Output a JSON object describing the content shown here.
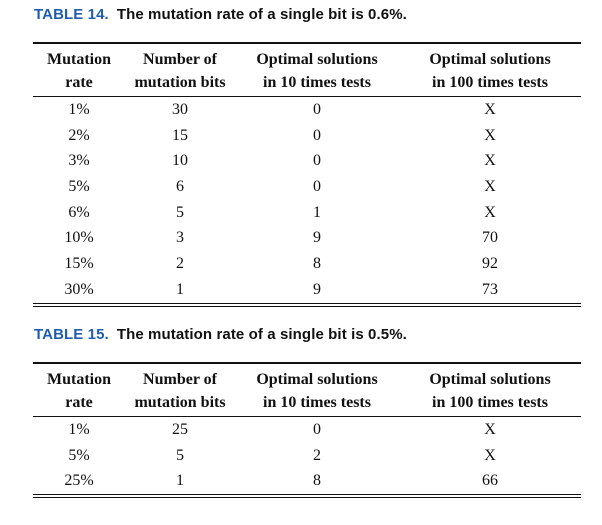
{
  "tables": [
    {
      "caption_label": "TABLE 14.",
      "caption_text": "The mutation rate of a single bit is 0.6%.",
      "headers_line1": [
        "Mutation",
        "Number of",
        "Optimal solutions",
        "Optimal solutions"
      ],
      "headers_line2": [
        "rate",
        "mutation bits",
        "in 10 times tests",
        "in 100 times tests"
      ],
      "rows": [
        [
          "1%",
          "30",
          "0",
          "X"
        ],
        [
          "2%",
          "15",
          "0",
          "X"
        ],
        [
          "3%",
          "10",
          "0",
          "X"
        ],
        [
          "5%",
          "6",
          "0",
          "X"
        ],
        [
          "6%",
          "5",
          "1",
          "X"
        ],
        [
          "10%",
          "3",
          "9",
          "70"
        ],
        [
          "15%",
          "2",
          "8",
          "92"
        ],
        [
          "30%",
          "1",
          "9",
          "73"
        ]
      ]
    },
    {
      "caption_label": "TABLE 15.",
      "caption_text": "The mutation rate of a single bit is 0.5%.",
      "headers_line1": [
        "Mutation",
        "Number of",
        "Optimal solutions",
        "Optimal solutions"
      ],
      "headers_line2": [
        "rate",
        "mutation bits",
        "in 10 times tests",
        "in 100 times tests"
      ],
      "rows": [
        [
          "1%",
          "25",
          "0",
          "X"
        ],
        [
          "5%",
          "5",
          "2",
          "X"
        ],
        [
          "25%",
          "1",
          "8",
          "66"
        ]
      ]
    }
  ]
}
